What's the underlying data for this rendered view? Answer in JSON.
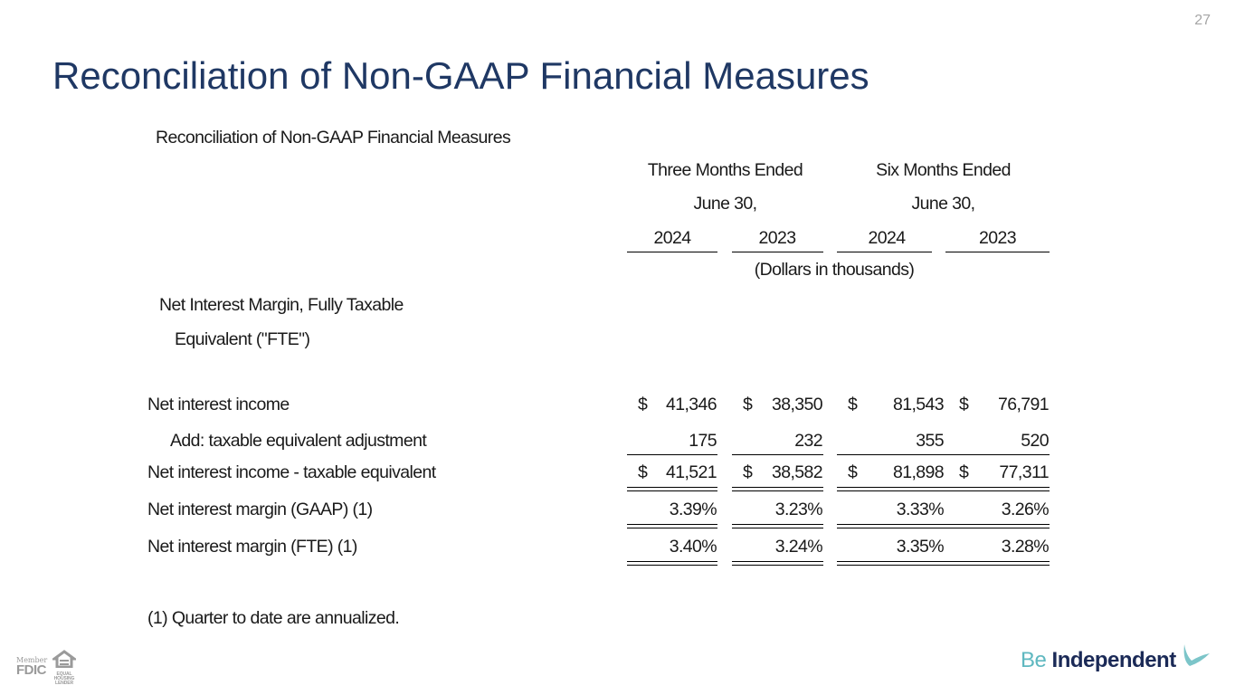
{
  "page_number": "27",
  "slide_title": "Reconciliation of Non-GAAP Financial Measures",
  "table": {
    "caption": "Reconciliation of Non-GAAP Financial Measures",
    "group_headers": [
      {
        "line1": "Three Months Ended",
        "line2": "June 30,"
      },
      {
        "line1": "Six Months Ended",
        "line2": "June 30,"
      }
    ],
    "years": [
      "2024",
      "2023",
      "2024",
      "2023"
    ],
    "units": "(Dollars in thousands)",
    "section_label_line1": "Net Interest Margin, Fully Taxable",
    "section_label_line2": "Equivalent (\"FTE\")",
    "rows": [
      {
        "label": "Net interest income",
        "dollar": "$",
        "values": [
          "41,346",
          "38,350",
          "81,543",
          "76,791"
        ]
      },
      {
        "label": "Add:  taxable equivalent adjustment",
        "dollar": "",
        "values": [
          "175",
          "232",
          "355",
          "520"
        ]
      },
      {
        "label": "Net interest income - taxable equivalent",
        "dollar": "$",
        "values": [
          "41,521",
          "38,582",
          "81,898",
          "77,311"
        ]
      },
      {
        "label": "Net interest margin (GAAP) (1)",
        "dollar": "",
        "values": [
          "3.39%",
          "3.23%",
          "3.33%",
          "3.26%"
        ]
      },
      {
        "label": "Net interest margin (FTE) (1)",
        "dollar": "",
        "values": [
          "3.40%",
          "3.24%",
          "3.35%",
          "3.28%"
        ]
      }
    ],
    "footnote": "(1) Quarter to date are annualized."
  },
  "footer": {
    "fdic_member": "Member",
    "fdic": "FDIC",
    "equal_housing": "EQUAL HOUSING LENDER",
    "brand_be": "Be",
    "brand_independent": "Independent"
  },
  "colors": {
    "title": "#1f3864",
    "brand_teal": "#5fb8c0",
    "brand_navy": "#1b2a57"
  }
}
